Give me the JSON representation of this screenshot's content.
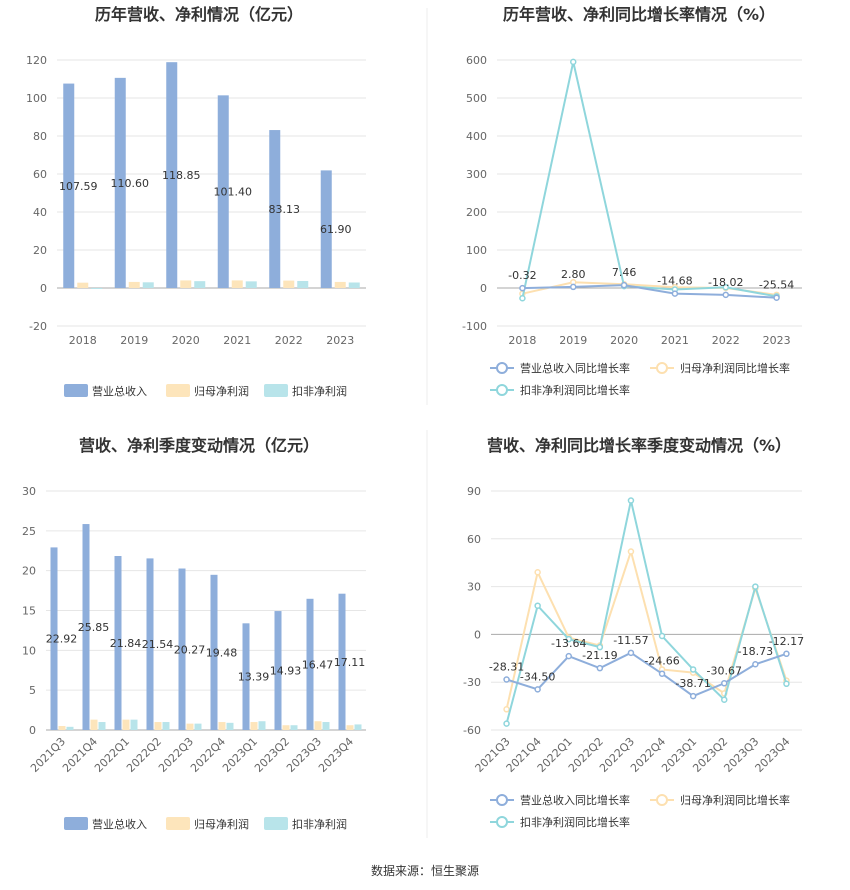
{
  "source_note": "数据来源：恒生聚源",
  "colors": {
    "revenue": "#8eaedb",
    "parent_profit": "#fde5bb",
    "deducted_profit": "#b8e4ea",
    "revenue_line": "#8eaedb",
    "parent_line": "#fde0b0",
    "deducted_line": "#8fd6dc",
    "grid": "#e6e6e6",
    "axis": "#aaaaaa",
    "text": "#333333",
    "tick": "#666666"
  },
  "chart_data": [
    {
      "id": "annual-amount",
      "type": "bar",
      "title": "历年营收、净利情况（亿元）",
      "categories": [
        "2018",
        "2019",
        "2020",
        "2021",
        "2022",
        "2023"
      ],
      "ylim": [
        -20,
        120
      ],
      "yticks": [
        -20,
        0,
        20,
        40,
        60,
        80,
        100,
        120
      ],
      "grid": true,
      "legend_position": "bottom",
      "series": [
        {
          "name": "营业总收入",
          "values": [
            107.59,
            110.6,
            118.85,
            101.4,
            83.13,
            61.9
          ],
          "labels": [
            "107.59",
            "110.60",
            "118.85",
            "101.40",
            "83.13",
            "61.90"
          ]
        },
        {
          "name": "归母净利润",
          "values": [
            2.8,
            3.2,
            4.0,
            4.0,
            3.9,
            3.2
          ]
        },
        {
          "name": "扣非净利润",
          "values": [
            -0.5,
            3.0,
            3.6,
            3.5,
            3.7,
            2.9
          ]
        }
      ]
    },
    {
      "id": "annual-growth",
      "type": "line",
      "title": "历年营收、净利同比增长率情况（%）",
      "categories": [
        "2018",
        "2019",
        "2020",
        "2021",
        "2022",
        "2023"
      ],
      "ylim": [
        -100,
        600
      ],
      "yticks": [
        -100,
        0,
        100,
        200,
        300,
        400,
        500,
        600
      ],
      "grid": true,
      "legend_position": "bottom",
      "series": [
        {
          "name": "营业总收入同比增长率",
          "values": [
            -0.32,
            2.8,
            7.46,
            -14.68,
            -18.02,
            -25.54
          ],
          "labels": [
            "-0.32",
            "2.80",
            "7.46",
            "-14.68",
            "-18.02",
            "-25.54"
          ]
        },
        {
          "name": "归母净利润同比增长率",
          "values": [
            -15,
            15,
            10,
            2,
            0,
            -18
          ]
        },
        {
          "name": "扣非净利润同比增长率",
          "values": [
            -27,
            595,
            5,
            -4,
            2,
            -22
          ]
        }
      ]
    },
    {
      "id": "quarterly-amount",
      "type": "bar",
      "title": "营收、净利季度变动情况（亿元）",
      "categories": [
        "2021Q3",
        "2021Q4",
        "2022Q1",
        "2022Q2",
        "2022Q3",
        "2022Q4",
        "2023Q1",
        "2023Q2",
        "2023Q3",
        "2023Q4"
      ],
      "ylim": [
        0,
        30
      ],
      "yticks": [
        0,
        5,
        10,
        15,
        20,
        25,
        30
      ],
      "grid": true,
      "legend_position": "bottom",
      "series": [
        {
          "name": "营业总收入",
          "values": [
            22.92,
            25.85,
            21.84,
            21.54,
            20.27,
            19.48,
            13.39,
            14.93,
            16.47,
            17.11
          ],
          "labels": [
            "22.92",
            "25.85",
            "21.84",
            "21.54",
            "20.27",
            "19.48",
            "13.39",
            "14.93",
            "16.47",
            "17.11"
          ]
        },
        {
          "name": "归母净利润",
          "values": [
            0.5,
            1.3,
            1.3,
            1.0,
            0.8,
            1.0,
            1.0,
            0.6,
            1.1,
            0.6
          ]
        },
        {
          "name": "扣非净利润",
          "values": [
            0.4,
            1.0,
            1.3,
            1.0,
            0.8,
            0.9,
            1.1,
            0.6,
            1.0,
            0.7
          ]
        }
      ]
    },
    {
      "id": "quarterly-growth",
      "type": "line",
      "title": "营收、净利同比增长率季度变动情况（%）",
      "categories": [
        "2021Q3",
        "2021Q4",
        "2022Q1",
        "2022Q2",
        "2022Q3",
        "2022Q4",
        "2023Q1",
        "2023Q2",
        "2023Q3",
        "2023Q4"
      ],
      "ylim": [
        -60,
        90
      ],
      "yticks": [
        -60,
        -30,
        0,
        30,
        60,
        90
      ],
      "grid": true,
      "legend_position": "bottom",
      "series": [
        {
          "name": "营业总收入同比增长率",
          "values": [
            -28.31,
            -34.5,
            -13.64,
            -21.19,
            -11.57,
            -24.66,
            -38.71,
            -30.67,
            -18.73,
            -12.17
          ],
          "labels": [
            "-28.31",
            "-34.50",
            "-13.64",
            "-21.19",
            "-11.57",
            "-24.66",
            "-38.71",
            "-30.67",
            "-18.73",
            "-12.17"
          ]
        },
        {
          "name": "归母净利润同比增长率",
          "values": [
            -47,
            39,
            -2,
            -7,
            52,
            -22,
            -24,
            -37,
            29,
            -29
          ]
        },
        {
          "name": "扣非净利润同比增长率",
          "values": [
            -56,
            18,
            -3,
            -8,
            84,
            -1,
            -22,
            -41,
            30,
            -31
          ]
        }
      ]
    }
  ]
}
